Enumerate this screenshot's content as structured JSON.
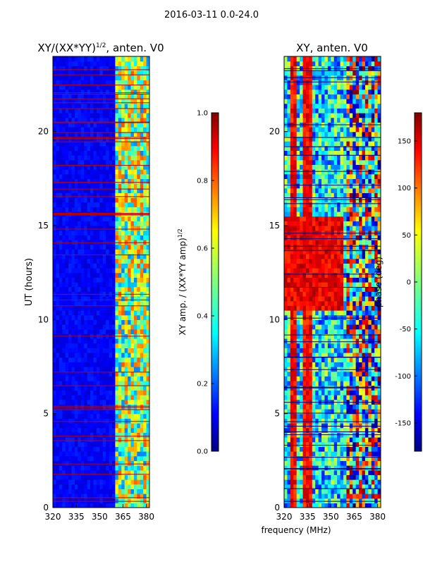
{
  "suptitle": "2016-03-11 0.0-24.0",
  "chart_data": [
    {
      "type": "heatmap",
      "title": "XY/(XX*YY)",
      "title_exponent": "1/2",
      "title_suffix": ", anten. V0",
      "xlabel": "",
      "ylabel": "UT (hours)",
      "xlim": [
        320,
        382
      ],
      "ylim": [
        0,
        24
      ],
      "xticks": [
        "320",
        "335",
        "350",
        "365",
        "380"
      ],
      "yticks": [
        "0",
        "5",
        "10",
        "15",
        "20"
      ],
      "colormap": "jet",
      "colorbar": {
        "label": "XY amp. / (XX*YY amp)",
        "label_exponent": "1/2",
        "range": [
          0.0,
          1.0
        ],
        "ticks": [
          "0.0",
          "0.2",
          "0.4",
          "0.6",
          "0.8",
          "1.0"
        ]
      },
      "description_values": {
        "background_level": 0.12,
        "high_region_x_range": [
          361,
          381
        ],
        "high_region_level": 0.6
      }
    },
    {
      "type": "heatmap",
      "title": "XY, anten. V0",
      "xlabel": "frequency (MHz)",
      "ylabel": "",
      "xlim": [
        320,
        382
      ],
      "ylim": [
        0,
        24
      ],
      "xticks": [
        "320",
        "335",
        "350",
        "365",
        "380"
      ],
      "yticks": [
        "0",
        "5",
        "10",
        "15",
        "20"
      ],
      "colormap": "jet",
      "colorbar": {
        "label": "phase (deg)",
        "range": [
          -180,
          180
        ],
        "ticks": [
          "-150",
          "-100",
          "-50",
          "0",
          "50",
          "100",
          "150"
        ]
      },
      "description_values": {
        "high_phase_band_ut": [
          10.5,
          15.5
        ],
        "high_phase_band_x_range": [
          320,
          358
        ]
      }
    }
  ],
  "colors": {
    "jet_low": "#00007f",
    "jet_high": "#7f0000",
    "line": "#000000",
    "background": "#ffffff"
  }
}
